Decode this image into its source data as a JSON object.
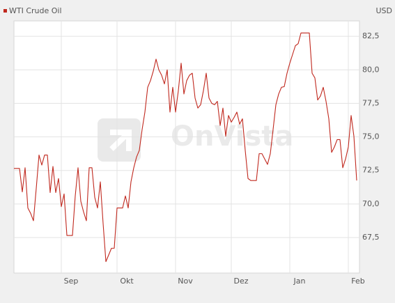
{
  "chart_data": {
    "type": "line",
    "watermark": "OnVista",
    "unit": "USD",
    "categories": [
      null,
      null,
      null,
      null,
      null,
      null,
      null,
      null,
      null,
      null,
      null,
      null,
      null,
      null,
      null,
      null,
      null,
      "Sep",
      null,
      null,
      null,
      null,
      null,
      null,
      null,
      null,
      null,
      null,
      null,
      null,
      null,
      null,
      null,
      null,
      null,
      null,
      null,
      "Okt",
      null,
      null,
      null,
      null,
      null,
      null,
      null,
      null,
      null,
      null,
      null,
      null,
      null,
      null,
      null,
      null,
      null,
      null,
      null,
      null,
      "Nov",
      null,
      null,
      null,
      null,
      null,
      null,
      null,
      null,
      null,
      null,
      null,
      null,
      null,
      null,
      null,
      null,
      null,
      null,
      null,
      "Dez",
      null,
      null,
      null,
      null,
      null,
      null,
      null,
      null,
      null,
      null,
      null,
      null,
      null,
      null,
      null,
      null,
      null,
      null,
      null,
      null,
      "Jan",
      null,
      null,
      null,
      null,
      null,
      null,
      null,
      null,
      null,
      null,
      null,
      null,
      null,
      null,
      null,
      null,
      null,
      null,
      null,
      null,
      "Feb",
      null,
      null,
      null
    ],
    "series": [
      {
        "name": "WTI Crude Oil",
        "color": "#c0281e",
        "values": [
          72.65,
          72.65,
          72.65,
          70.9,
          72.7,
          69.7,
          69.3,
          68.75,
          71.15,
          73.65,
          72.9,
          73.65,
          73.65,
          70.85,
          72.8,
          70.85,
          71.9,
          69.8,
          70.75,
          67.65,
          67.65,
          67.65,
          70.6,
          72.7,
          70.2,
          69.4,
          68.75,
          72.7,
          72.7,
          70.5,
          69.7,
          71.65,
          68.55,
          65.7,
          66.2,
          66.7,
          66.7,
          69.7,
          69.7,
          69.7,
          70.6,
          69.7,
          71.65,
          72.7,
          73.5,
          74.0,
          75.55,
          76.85,
          78.7,
          79.2,
          79.9,
          80.8,
          80.0,
          79.6,
          78.95,
          80.0,
          76.85,
          78.7,
          76.85,
          78.45,
          80.5,
          78.2,
          79.2,
          79.6,
          79.75,
          77.9,
          77.15,
          77.4,
          78.45,
          79.75,
          77.9,
          77.5,
          77.4,
          77.65,
          75.85,
          77.15,
          75.05,
          76.6,
          76.1,
          76.45,
          76.85,
          75.95,
          76.35,
          74.0,
          71.9,
          71.75,
          71.75,
          71.75,
          73.75,
          73.75,
          73.35,
          72.95,
          73.75,
          75.55,
          77.4,
          78.2,
          78.7,
          78.75,
          79.75,
          80.5,
          81.15,
          81.8,
          81.95,
          82.75,
          82.75,
          82.75,
          82.75,
          79.75,
          79.4,
          77.75,
          78.05,
          78.7,
          77.65,
          76.35,
          73.85,
          74.25,
          74.8,
          74.8,
          72.7,
          73.35,
          74.25,
          76.6,
          75.05,
          71.75
        ]
      }
    ],
    "ylim": [
      64.85,
      83.65
    ],
    "yticks": [
      {
        "value": 67.5,
        "label": "67,5"
      },
      {
        "value": 70,
        "label": "70,0"
      },
      {
        "value": 72.5,
        "label": "72,5"
      },
      {
        "value": 75,
        "label": "75,0"
      },
      {
        "value": 77.5,
        "label": "77,5"
      },
      {
        "value": 80,
        "label": "80,0"
      },
      {
        "value": 82.5,
        "label": "82,5"
      }
    ],
    "grid": true
  }
}
